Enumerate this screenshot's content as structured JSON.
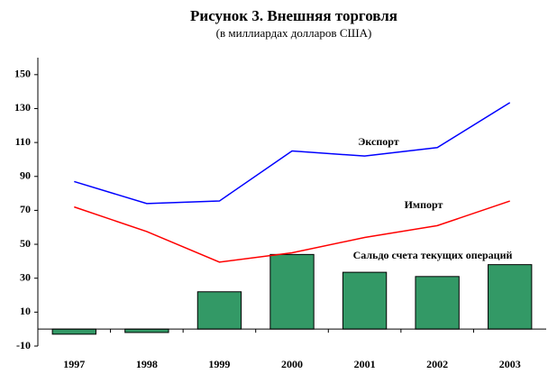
{
  "chart_data": {
    "type": "bar",
    "title": "Рисунок 3. Внешняя торговля",
    "subtitle": "(в миллиардах долларов США)",
    "categories": [
      "1997",
      "1998",
      "1999",
      "2000",
      "2001",
      "2002",
      "2003"
    ],
    "series": [
      {
        "name": "Экспорт",
        "type": "line",
        "color": "#0000ff",
        "values": [
          87,
          74,
          75.5,
          105,
          102,
          107,
          133.5
        ]
      },
      {
        "name": "Импорт",
        "type": "line",
        "color": "#ff0000",
        "values": [
          72,
          57.5,
          39.5,
          45,
          54,
          61,
          75.5
        ]
      },
      {
        "name": "Сальдо счета текущих операций",
        "type": "bar",
        "color": "#339966",
        "values": [
          -3,
          -2,
          22,
          44,
          33.5,
          31,
          38
        ]
      }
    ],
    "ylim": [
      -10,
      160
    ],
    "yticks": [
      -10,
      10,
      30,
      50,
      70,
      90,
      110,
      130,
      150
    ]
  }
}
